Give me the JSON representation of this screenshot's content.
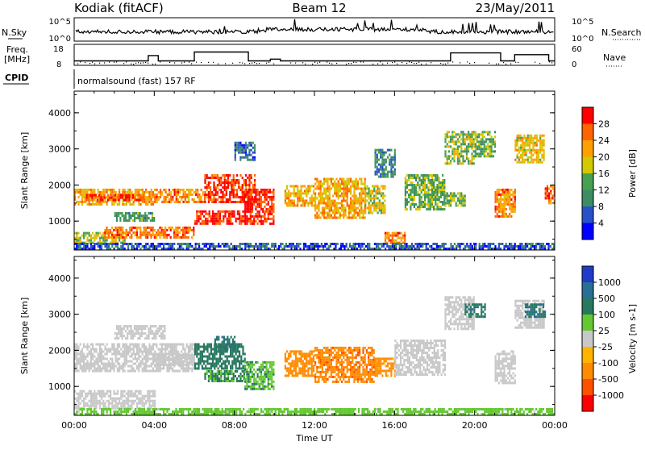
{
  "header": {
    "station": "Kodiak (fitACF)",
    "beam": "Beam 12",
    "date": "23/May/2011"
  },
  "nsky_panel": {
    "left_label": "N.Sky",
    "right_label": "N.Search",
    "tick_top": "10^5",
    "tick_bottom": "10^0",
    "right_tick_top": "10^5",
    "right_tick_bottom": "10^0"
  },
  "freq_panel": {
    "left_label_line1": "Freq.",
    "left_label_line2": "[MHz]",
    "right_label": "Nave",
    "tick_top": "18",
    "tick_bottom": "8",
    "right_tick_top": "60",
    "right_tick_bottom": "0"
  },
  "cpid_panel": {
    "label": "CPID",
    "text": "normalsound (fast) 157 RF"
  },
  "colors": {
    "power_scale": [
      "#0000ff",
      "#2850c8",
      "#3c8c64",
      "#46a050",
      "#d2c800",
      "#ffa000",
      "#ff6400",
      "#ff0000"
    ],
    "velocity_scale": [
      "#1e3cc8",
      "#286e96",
      "#287860",
      "#64c832",
      "#c8c8c8",
      "#ffb400",
      "#ff8c00",
      "#ff5000",
      "#ff0000"
    ],
    "ground_scatter": "#c8c8c8"
  },
  "chart_data": [
    {
      "type": "heatmap",
      "name_key": "power",
      "ylabel": "Slant Range [km]",
      "ylim": [
        200,
        4600
      ],
      "yticks": [
        "1000",
        "2000",
        "3000",
        "4000"
      ],
      "xlim_hours": [
        0,
        24
      ],
      "colorbar": {
        "label": "Power [dB]",
        "ticks": [
          "4",
          "8",
          "12",
          "16",
          "20",
          "24",
          "28"
        ],
        "range": [
          0,
          32
        ]
      },
      "regions": [
        {
          "t": [
            0.0,
            4.0
          ],
          "r": [
            1450,
            1900
          ],
          "v": 22
        },
        {
          "t": [
            0.5,
            3.5
          ],
          "r": [
            1550,
            1750
          ],
          "v": 27
        },
        {
          "t": [
            0.0,
            2.5
          ],
          "r": [
            400,
            700
          ],
          "v": 18
        },
        {
          "t": [
            1.5,
            6.0
          ],
          "r": [
            550,
            850
          ],
          "v": 25
        },
        {
          "t": [
            2.0,
            4.0
          ],
          "r": [
            1000,
            1250
          ],
          "v": 12
        },
        {
          "t": [
            4.0,
            6.5
          ],
          "r": [
            1500,
            1900
          ],
          "v": 24
        },
        {
          "t": [
            6.0,
            8.5
          ],
          "r": [
            900,
            1300
          ],
          "v": 29
        },
        {
          "t": [
            6.5,
            9.0
          ],
          "r": [
            1500,
            2300
          ],
          "v": 28
        },
        {
          "t": [
            8.5,
            10.0
          ],
          "r": [
            900,
            1900
          ],
          "v": 29
        },
        {
          "t": [
            8.0,
            9.0
          ],
          "r": [
            2700,
            3200
          ],
          "v": 8
        },
        {
          "t": [
            10.5,
            12.0
          ],
          "r": [
            1400,
            2000
          ],
          "v": 21
        },
        {
          "t": [
            12.0,
            14.5
          ],
          "r": [
            1100,
            2200
          ],
          "v": 22
        },
        {
          "t": [
            14.5,
            15.5
          ],
          "r": [
            1200,
            2000
          ],
          "v": 18
        },
        {
          "t": [
            15.0,
            16.0
          ],
          "r": [
            2200,
            3000
          ],
          "v": 10
        },
        {
          "t": [
            15.5,
            16.5
          ],
          "r": [
            400,
            700
          ],
          "v": 24
        },
        {
          "t": [
            16.5,
            18.5
          ],
          "r": [
            1300,
            2300
          ],
          "v": 14
        },
        {
          "t": [
            18.5,
            20.0
          ],
          "r": [
            2600,
            3500
          ],
          "v": 16
        },
        {
          "t": [
            18.5,
            19.5
          ],
          "r": [
            1400,
            1800
          ],
          "v": 14
        },
        {
          "t": [
            20.0,
            21.0
          ],
          "r": [
            2800,
            3500
          ],
          "v": 14
        },
        {
          "t": [
            21.0,
            22.0
          ],
          "r": [
            1100,
            1900
          ],
          "v": 24
        },
        {
          "t": [
            22.0,
            23.5
          ],
          "r": [
            2600,
            3400
          ],
          "v": 20
        },
        {
          "t": [
            23.5,
            24.0
          ],
          "r": [
            1500,
            2000
          ],
          "v": 25
        },
        {
          "t": [
            0.0,
            24.0
          ],
          "r": [
            250,
            400
          ],
          "v": 6
        }
      ]
    },
    {
      "type": "heatmap",
      "name_key": "velocity",
      "ylabel": "Slant Range [km]",
      "ylim": [
        200,
        4600
      ],
      "yticks": [
        "1000",
        "2000",
        "3000",
        "4000"
      ],
      "xlim_hours": [
        0,
        24
      ],
      "xticks": [
        "00:00",
        "04:00",
        "08:00",
        "12:00",
        "16:00",
        "20:00",
        "00:00"
      ],
      "xlabel": "Time UT",
      "colorbar": {
        "label": "Velocity [m s-1]",
        "ticks": [
          "1000",
          "500",
          "100",
          "25",
          "-25",
          "-100",
          "-500",
          "-1000"
        ],
        "range": [
          -1250,
          1250
        ]
      },
      "regions": [
        {
          "t": [
            0.0,
            6.0
          ],
          "r": [
            1400,
            2200
          ],
          "v": 0,
          "ground": true
        },
        {
          "t": [
            0.0,
            4.0
          ],
          "r": [
            400,
            900
          ],
          "v": 0,
          "ground": true
        },
        {
          "t": [
            2.0,
            4.5
          ],
          "r": [
            2300,
            2700
          ],
          "v": 0,
          "ground": true
        },
        {
          "t": [
            4.0,
            6.0
          ],
          "r": [
            1600,
            1900
          ],
          "v": 0,
          "ground": true
        },
        {
          "t": [
            6.0,
            8.5
          ],
          "r": [
            1500,
            2200
          ],
          "v": 300
        },
        {
          "t": [
            6.5,
            8.5
          ],
          "r": [
            1150,
            1450
          ],
          "v": 120
        },
        {
          "t": [
            7.0,
            8.0
          ],
          "r": [
            2000,
            2400
          ],
          "v": 400
        },
        {
          "t": [
            8.5,
            10.0
          ],
          "r": [
            900,
            1700
          ],
          "v": 90
        },
        {
          "t": [
            10.5,
            12.0
          ],
          "r": [
            1300,
            2000
          ],
          "v": -300
        },
        {
          "t": [
            12.0,
            15.0
          ],
          "r": [
            1100,
            2100
          ],
          "v": -400
        },
        {
          "t": [
            15.0,
            16.0
          ],
          "r": [
            1300,
            1800
          ],
          "v": -150
        },
        {
          "t": [
            16.0,
            18.5
          ],
          "r": [
            1300,
            2300
          ],
          "v": 0,
          "ground": true
        },
        {
          "t": [
            18.5,
            20.0
          ],
          "r": [
            2600,
            3500
          ],
          "v": 0,
          "ground": true
        },
        {
          "t": [
            19.5,
            20.5
          ],
          "r": [
            2900,
            3300
          ],
          "v": 400
        },
        {
          "t": [
            21.0,
            22.0
          ],
          "r": [
            1100,
            2000
          ],
          "v": 0,
          "ground": true
        },
        {
          "t": [
            22.0,
            23.5
          ],
          "r": [
            2600,
            3400
          ],
          "v": 0,
          "ground": true
        },
        {
          "t": [
            22.5,
            23.5
          ],
          "r": [
            2900,
            3300
          ],
          "v": 500
        },
        {
          "t": [
            0.0,
            24.0
          ],
          "r": [
            250,
            400
          ],
          "v": 40
        }
      ]
    }
  ]
}
